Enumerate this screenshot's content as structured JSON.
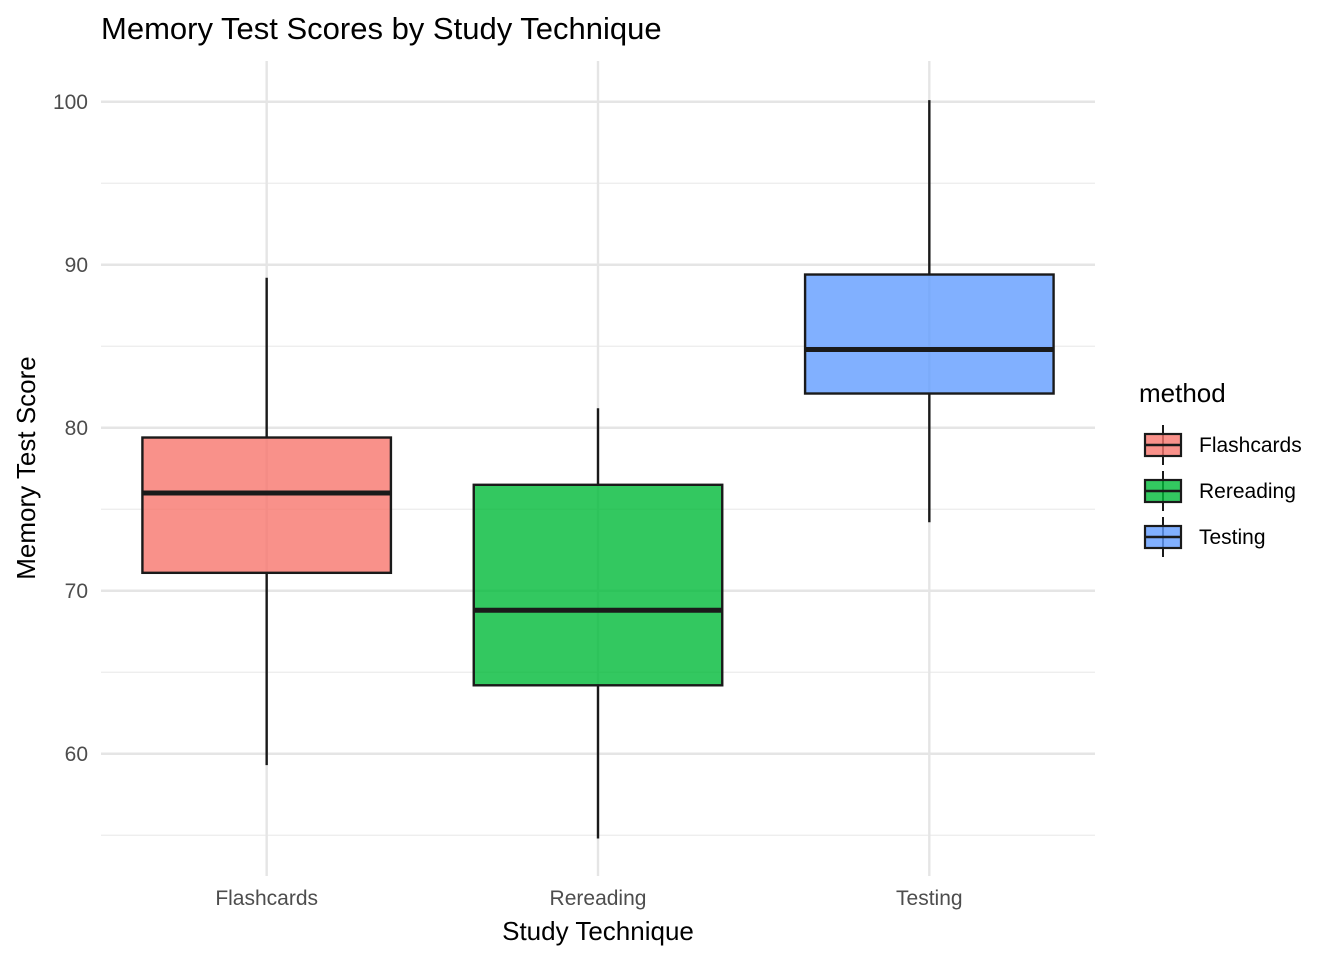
{
  "chart_data": {
    "type": "boxplot",
    "title": "Memory Test Scores by Study Technique",
    "xlabel": "Study Technique",
    "ylabel": "Memory Test Score",
    "ylim": [
      52.5,
      102.5
    ],
    "y_ticks": [
      60,
      70,
      80,
      90,
      100
    ],
    "y_minor_ticks": [
      55,
      65,
      75,
      85,
      95
    ],
    "grid": true,
    "legend": {
      "title": "method",
      "position": "right"
    },
    "categories": [
      "Flashcards",
      "Rereading",
      "Testing"
    ],
    "series": [
      {
        "name": "Flashcards",
        "color": "#F8766D",
        "whisker_low": 59.3,
        "q1": 71.1,
        "median": 76.0,
        "q3": 79.4,
        "whisker_high": 89.2
      },
      {
        "name": "Rereading",
        "color": "#00BA38",
        "whisker_low": 54.8,
        "q1": 64.2,
        "median": 68.8,
        "q3": 76.5,
        "whisker_high": 81.2
      },
      {
        "name": "Testing",
        "color": "#619CFF",
        "whisker_low": 74.2,
        "q1": 82.1,
        "median": 84.8,
        "q3": 89.4,
        "whisker_high": 100.1
      }
    ]
  }
}
